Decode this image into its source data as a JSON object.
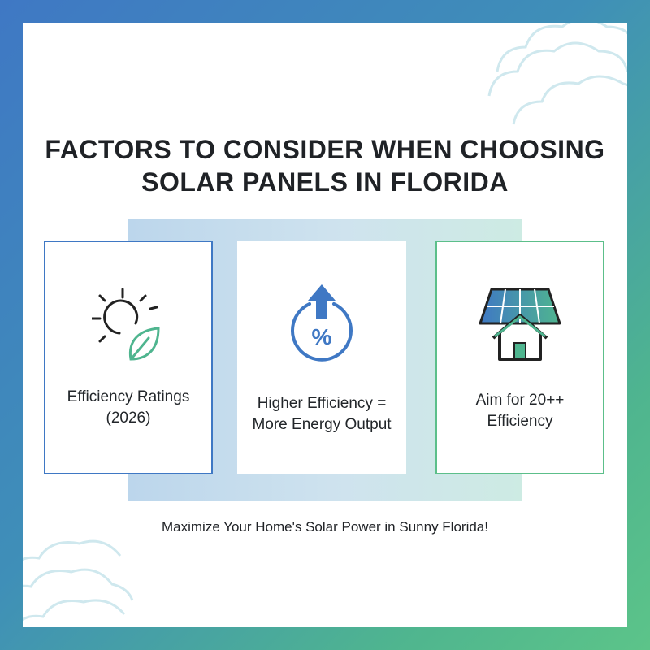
{
  "title": {
    "line1": "FACTORS TO CONSIDER WHEN CHOOSING",
    "line2": "SOLAR PANELS IN FLORIDA"
  },
  "cards": [
    {
      "icon": "sun-leaf-icon",
      "line1": "Efficiency Ratings",
      "line2": "(2026)"
    },
    {
      "icon": "percent-up-arrow-icon",
      "line1": "Higher Efficiency =",
      "line2": "More Energy Output"
    },
    {
      "icon": "solar-panel-house-icon",
      "line1": "Aim for 20++",
      "line2": "Efficiency"
    }
  ],
  "tagline": "Maximize Your Home's Solar Power in Sunny Florida!",
  "colors": {
    "blue": "#3f78c4",
    "green": "#5cbf8a",
    "text": "#1f2226"
  }
}
